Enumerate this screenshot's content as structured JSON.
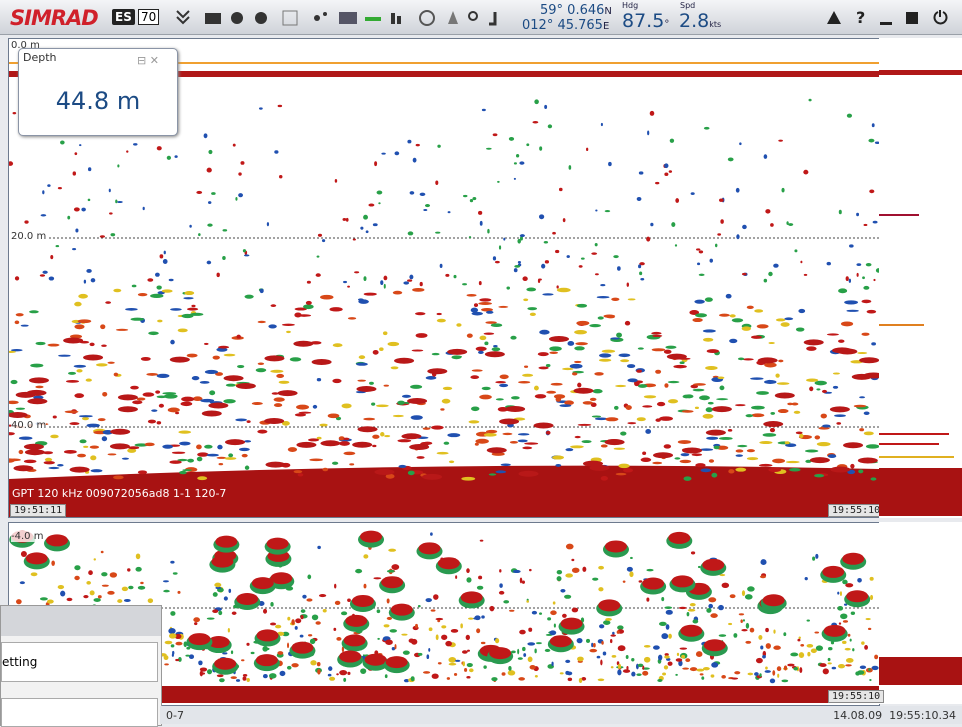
{
  "header": {
    "brand": "SIMRAD",
    "model_badge": "ES",
    "model_number": "70",
    "latitude": "59° 0.646",
    "lat_hemisphere": "N",
    "longitude": "012° 45.765",
    "lon_hemisphere": "E",
    "heading_label": "Hdg",
    "heading": "87.5",
    "heading_unit": "°",
    "speed_label": "Spd",
    "speed": "2.8",
    "speed_unit": "kts"
  },
  "depth_panel": {
    "title": "Depth",
    "value": "44.8 m"
  },
  "echogram_upper": {
    "depth_labels": [
      "0.0 m",
      "20.0 m",
      "40.0 m"
    ],
    "channel": "GPT 120 kHz 009072056ad8 1-1 120-7",
    "start_time": "19:51:11",
    "end_time": "19:55:10"
  },
  "echogram_lower": {
    "depth_label": "-4.0 m",
    "end_time": "19:55:10"
  },
  "overlay": {
    "item": "etting"
  },
  "status_bar": {
    "channel_fragment": "0-7",
    "datetime": "14.08.09  19:55:10.34"
  }
}
